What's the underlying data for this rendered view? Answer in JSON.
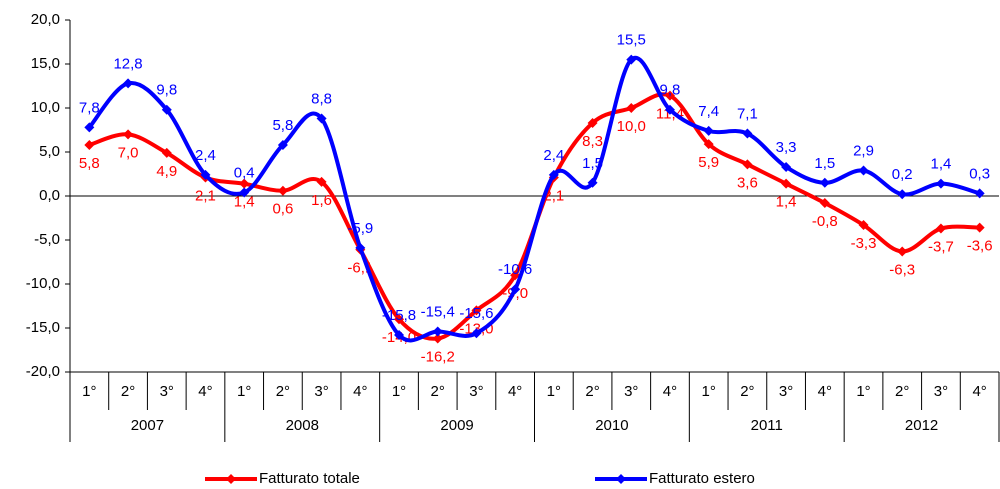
{
  "chart_data": {
    "type": "line",
    "categories": [
      "1°",
      "2°",
      "3°",
      "4°",
      "1°",
      "2°",
      "3°",
      "4°",
      "1°",
      "2°",
      "3°",
      "4°",
      "1°",
      "2°",
      "3°",
      "4°",
      "1°",
      "2°",
      "3°",
      "4°",
      "1°",
      "2°",
      "3°",
      "4°"
    ],
    "category_groups": [
      "2007",
      "2008",
      "2009",
      "2010",
      "2011",
      "2012"
    ],
    "series": [
      {
        "name": "Fatturato totale",
        "color": "#ff0000",
        "values": [
          5.8,
          7.0,
          4.9,
          2.1,
          1.4,
          0.6,
          1.6,
          -6.1,
          -14.0,
          -16.2,
          -13.0,
          -9.0,
          2.1,
          8.3,
          10.0,
          11.4,
          5.9,
          3.6,
          1.4,
          -0.8,
          -3.3,
          -6.3,
          -3.7,
          -3.6
        ],
        "value_labels": [
          "5,8",
          "7,0",
          "4,9",
          "2,1",
          "1,4",
          "0,6",
          "1,6",
          "-6,1",
          "-14,0",
          "-16,2",
          "-13,0",
          "-9,0",
          "2,1",
          "8,3",
          "10,0",
          "11,4",
          "5,9",
          "3,6",
          "1,4",
          "-0,8",
          "-3,3",
          "-6,3",
          "-3,7",
          "-3,6"
        ]
      },
      {
        "name": "Fatturato estero",
        "color": "#0000ff",
        "values": [
          7.8,
          12.8,
          9.8,
          2.4,
          0.4,
          5.8,
          8.8,
          -5.9,
          -15.8,
          -15.4,
          -15.6,
          -10.6,
          2.4,
          1.5,
          15.5,
          9.8,
          7.4,
          7.1,
          3.3,
          1.5,
          2.9,
          0.2,
          1.4,
          0.3
        ],
        "value_labels": [
          "7,8",
          "12,8",
          "9,8",
          "2,4",
          "0,4",
          "5,8",
          "8,8",
          "-5,9",
          "-15,8",
          "-15,4",
          "-15,6",
          "-10,6",
          "2,4",
          "1,5",
          "15,5",
          "9,8",
          "7,4",
          "7,1",
          "3,3",
          "1,5",
          "2,9",
          "0,2",
          "1,4",
          "0,3"
        ]
      }
    ],
    "ylim": [
      -20,
      20
    ],
    "yticks": [
      {
        "value": -20,
        "label": "-20,0"
      },
      {
        "value": -15,
        "label": "-15,0"
      },
      {
        "value": -10,
        "label": "-10,0"
      },
      {
        "value": -5,
        "label": "-5,0"
      },
      {
        "value": 0,
        "label": "0,0"
      },
      {
        "value": 5,
        "label": "5,0"
      },
      {
        "value": 10,
        "label": "10,0"
      },
      {
        "value": 15,
        "label": "15,0"
      },
      {
        "value": 20,
        "label": "20,0"
      }
    ],
    "smooth": true
  }
}
